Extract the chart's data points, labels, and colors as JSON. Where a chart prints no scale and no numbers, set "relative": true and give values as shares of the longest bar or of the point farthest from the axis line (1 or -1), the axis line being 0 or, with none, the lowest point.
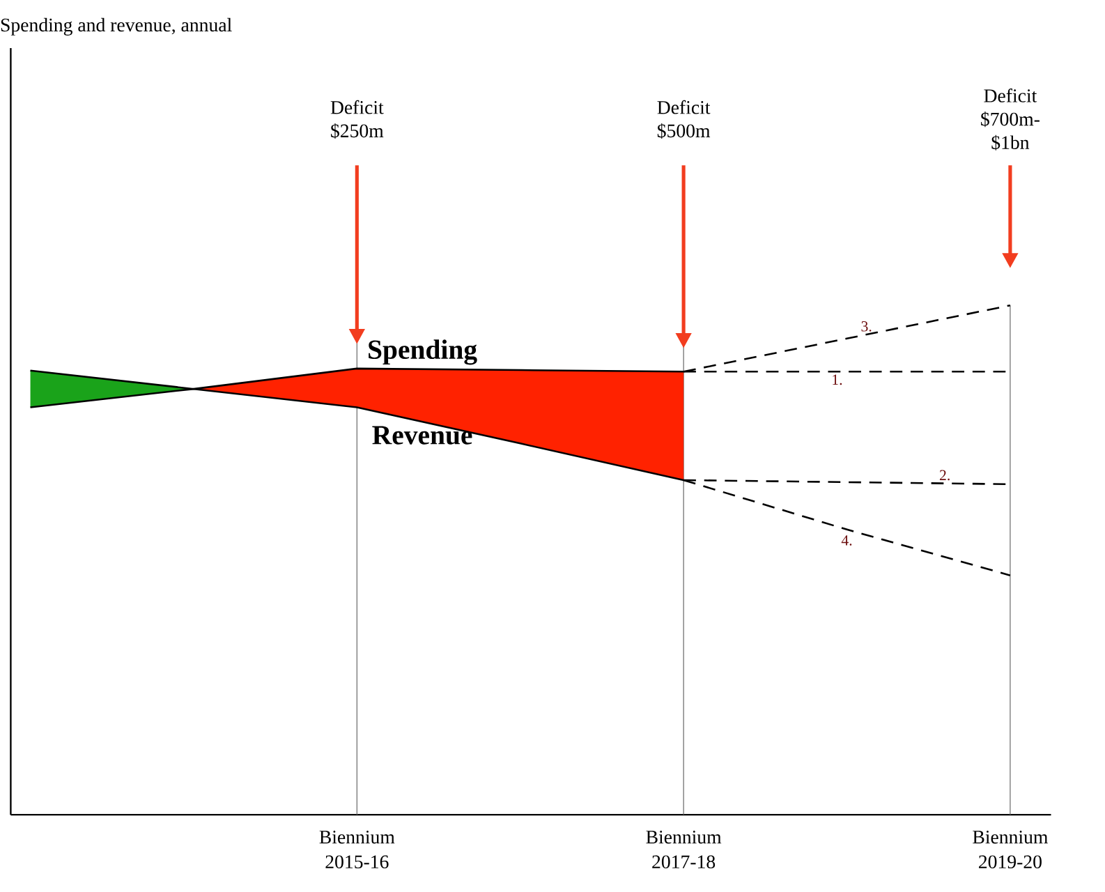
{
  "chart_data": {
    "type": "line",
    "relative": true,
    "categories": [
      null,
      null,
      "Biennium 2015-16",
      null,
      "Biennium 2017-18",
      null,
      "Biennium 2019-20"
    ],
    "series": [
      {
        "color": "#1aa31a",
        "values": [
          null,
          null,
          null,
          null,
          null,
          null,
          null
        ],
        "upper": [
          0.872,
          0.836,
          null,
          null,
          null,
          null,
          null
        ],
        "lower": [
          0.8,
          0.836,
          null,
          null,
          null,
          null,
          null
        ]
      },
      {
        "color": "#ff2200",
        "values": [
          null,
          null,
          null,
          null,
          null,
          null,
          null
        ],
        "upper": [
          null,
          0.836,
          0.876,
          0.873,
          0.87,
          null,
          null
        ],
        "lower": [
          null,
          0.836,
          0.8,
          0.729,
          0.657,
          null,
          null
        ]
      },
      {
        "name": "Spending",
        "color": "#000000",
        "line_style": "solid",
        "values": [
          0.8,
          0.836,
          0.876,
          0.873,
          0.87,
          null,
          null
        ]
      },
      {
        "name": "Revenue",
        "color": "#000000",
        "line_style": "solid",
        "values": [
          0.872,
          0.836,
          0.8,
          0.729,
          0.657,
          null,
          null
        ]
      },
      {
        "name": "1.",
        "color": "#000000",
        "line_style": "dashed",
        "values": [
          null,
          null,
          null,
          null,
          0.87,
          0.87,
          0.87
        ]
      },
      {
        "name": "2.",
        "color": "#000000",
        "line_style": "dashed",
        "values": [
          null,
          null,
          null,
          null,
          0.657,
          0.653,
          0.649
        ]
      },
      {
        "name": "3.",
        "color": "#000000",
        "line_style": "dashed",
        "values": [
          null,
          null,
          null,
          null,
          0.87,
          0.935,
          1.0
        ]
      },
      {
        "name": "4.",
        "color": "#000000",
        "line_style": "dashed",
        "values": [
          null,
          null,
          null,
          null,
          0.657,
          0.56,
          0.47
        ]
      }
    ],
    "grid": "x",
    "annotations": [
      "Deficit $250m",
      "Deficit $500m",
      "Deficit $700m-$1bn",
      "Spending and revenue, annual"
    ]
  }
}
